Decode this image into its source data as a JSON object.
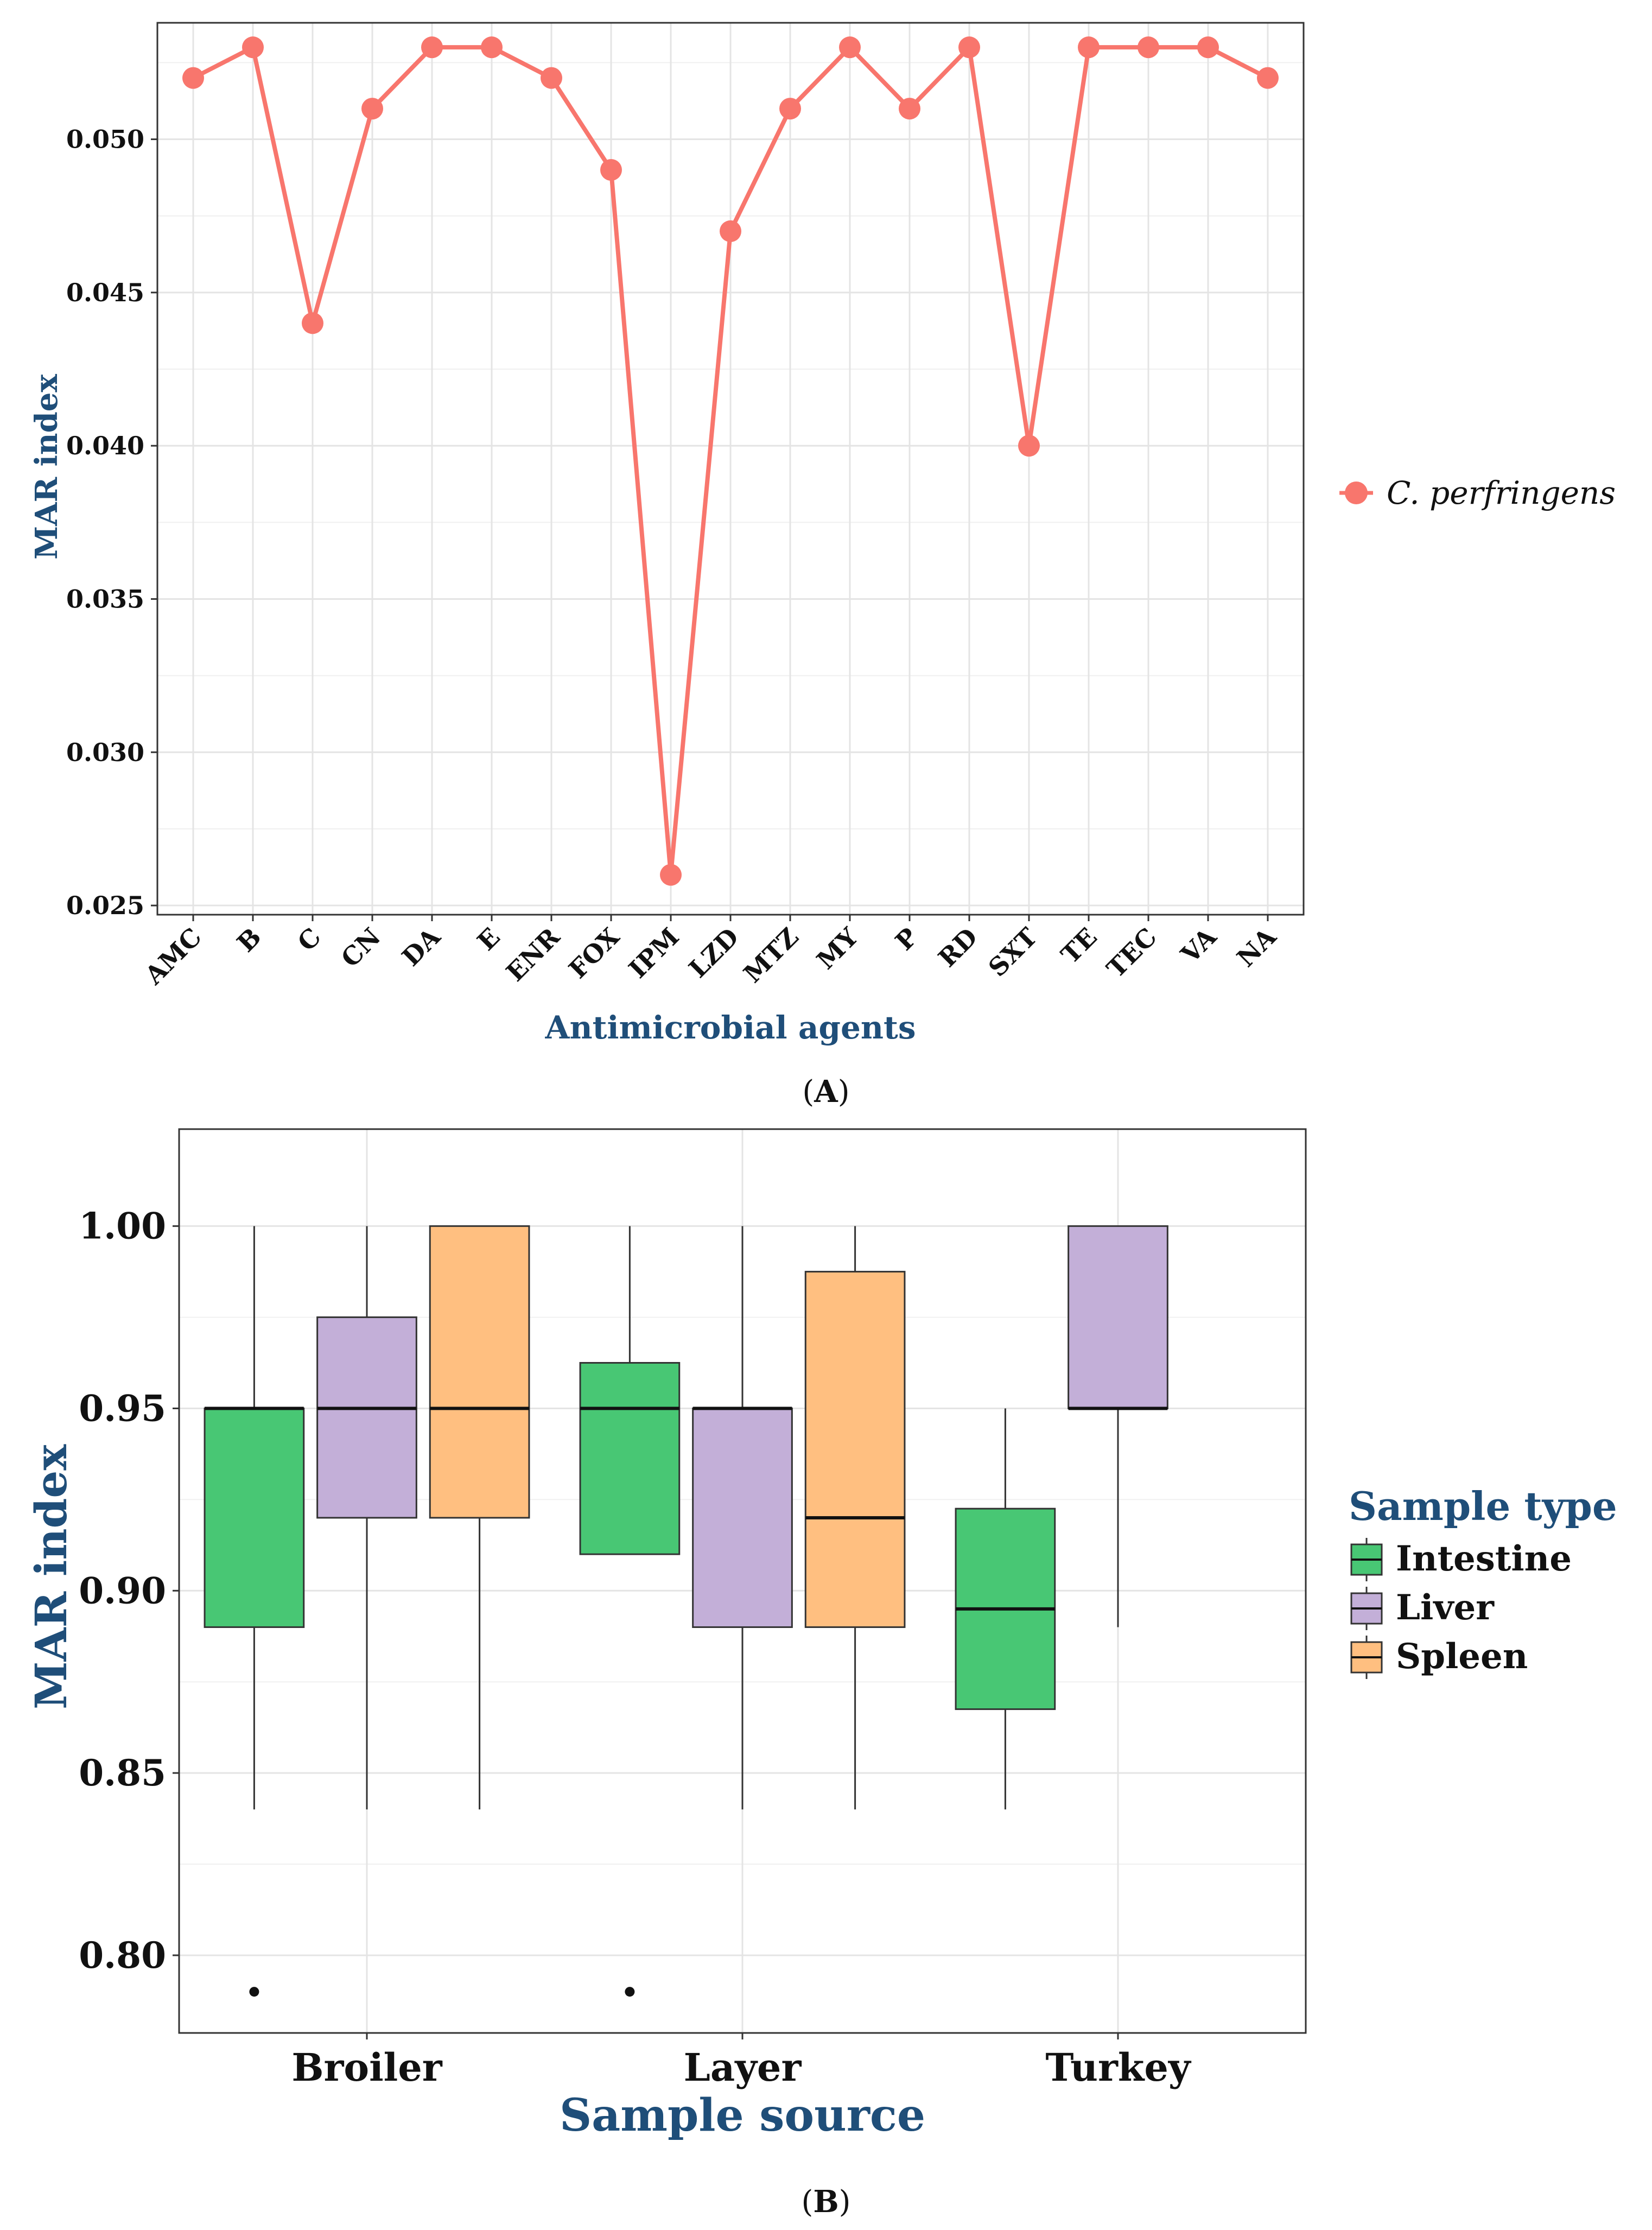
{
  "chart_data": [
    {
      "panel": "(A)",
      "panel_open": "(",
      "panel_letter": "A",
      "panel_close": ")",
      "type": "line",
      "title": "",
      "xlabel": "Antimicrobial agents",
      "ylabel": "MAR index",
      "categories": [
        "AMC",
        "B",
        "C",
        "CN",
        "DA",
        "E",
        "ENR",
        "FOX",
        "IPM",
        "LZD",
        "MTZ",
        "MY",
        "P",
        "RD",
        "SXT",
        "TE",
        "TEC",
        "VA",
        "NA"
      ],
      "series": [
        {
          "name": "C. perfringens",
          "color": "#f8766d",
          "values": [
            0.052,
            0.053,
            0.044,
            0.051,
            0.053,
            0.053,
            0.052,
            0.049,
            0.026,
            0.047,
            0.051,
            0.053,
            0.051,
            0.053,
            0.04,
            0.053,
            0.053,
            0.053,
            0.052
          ]
        }
      ],
      "ylim": [
        0.0247,
        0.0538
      ],
      "yticks": [
        0.025,
        0.03,
        0.035,
        0.04,
        0.045,
        0.05
      ],
      "ytick_labels": [
        "0.025",
        "0.030",
        "0.035",
        "0.040",
        "0.045",
        "0.050"
      ],
      "grid": true,
      "legend_position": "right"
    },
    {
      "panel": "(B)",
      "panel_open": "(",
      "panel_letter": "B",
      "panel_close": ")",
      "type": "box",
      "title": "",
      "xlabel": "Sample source",
      "ylabel": "MAR index",
      "categories": [
        "Broiler",
        "Layer",
        "Turkey"
      ],
      "legend_title": "Sample type",
      "groups": [
        {
          "name": "Intestine",
          "color": "#48c774"
        },
        {
          "name": "Liver",
          "color": "#c3afd8"
        },
        {
          "name": "Spleen",
          "color": "#ffbf80"
        }
      ],
      "boxes": [
        {
          "source": "Broiler",
          "type": "Intestine",
          "min": 0.84,
          "q1": 0.89,
          "median": 0.95,
          "q3": 0.95,
          "max": 1.0,
          "outliers": [
            0.79
          ]
        },
        {
          "source": "Broiler",
          "type": "Liver",
          "min": 0.84,
          "q1": 0.92,
          "median": 0.95,
          "q3": 0.975,
          "max": 1.0,
          "outliers": []
        },
        {
          "source": "Broiler",
          "type": "Spleen",
          "min": 0.84,
          "q1": 0.92,
          "median": 0.95,
          "q3": 1.0,
          "max": 1.0,
          "outliers": []
        },
        {
          "source": "Layer",
          "type": "Intestine",
          "min": 0.91,
          "q1": 0.91,
          "median": 0.95,
          "q3": 0.9625,
          "max": 1.0,
          "outliers": [
            0.79
          ]
        },
        {
          "source": "Layer",
          "type": "Liver",
          "min": 0.84,
          "q1": 0.89,
          "median": 0.95,
          "q3": 0.95,
          "max": 1.0,
          "outliers": []
        },
        {
          "source": "Layer",
          "type": "Spleen",
          "min": 0.84,
          "q1": 0.89,
          "median": 0.92,
          "q3": 0.9875,
          "max": 1.0,
          "outliers": []
        },
        {
          "source": "Turkey",
          "type": "Intestine",
          "min": 0.84,
          "q1": 0.8675,
          "median": 0.895,
          "q3": 0.9225,
          "max": 0.95,
          "outliers": []
        },
        {
          "source": "Turkey",
          "type": "Liver",
          "min": 0.89,
          "q1": 0.95,
          "median": 0.95,
          "q3": 1.0,
          "max": 1.0,
          "outliers": []
        }
      ],
      "ylim": [
        0.7787,
        1.0266
      ],
      "yticks": [
        0.8,
        0.85,
        0.9,
        0.95,
        1.0
      ],
      "ytick_labels": [
        "0.80",
        "0.85",
        "0.90",
        "0.95",
        "1.00"
      ],
      "grid": true,
      "legend_position": "right"
    }
  ]
}
